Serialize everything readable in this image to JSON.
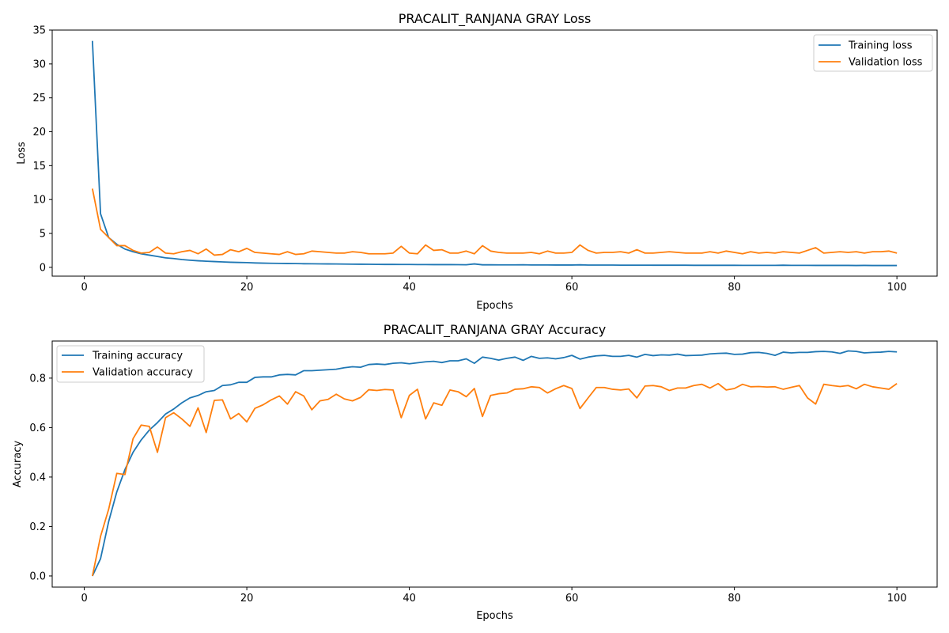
{
  "chart_data": [
    {
      "type": "line",
      "title": "PRACALIT_RANJANA GRAY Loss",
      "xlabel": "Epochs",
      "ylabel": "Loss",
      "xlim": [
        -3.95,
        104.95
      ],
      "ylim": [
        -1.3,
        35
      ],
      "xticks": [
        0,
        20,
        40,
        60,
        80,
        100
      ],
      "yticks": [
        0,
        5,
        10,
        15,
        20,
        25,
        30,
        35
      ],
      "grid": false,
      "legend_position": "top-right",
      "x": [
        1,
        2,
        3,
        4,
        5,
        6,
        7,
        8,
        9,
        10,
        11,
        12,
        13,
        14,
        15,
        16,
        17,
        18,
        19,
        20,
        21,
        22,
        23,
        24,
        25,
        26,
        27,
        28,
        29,
        30,
        31,
        32,
        33,
        34,
        35,
        36,
        37,
        38,
        39,
        40,
        41,
        42,
        43,
        44,
        45,
        46,
        47,
        48,
        49,
        50,
        51,
        52,
        53,
        54,
        55,
        56,
        57,
        58,
        59,
        60,
        61,
        62,
        63,
        64,
        65,
        66,
        67,
        68,
        69,
        70,
        71,
        72,
        73,
        74,
        75,
        76,
        77,
        78,
        79,
        80,
        81,
        82,
        83,
        84,
        85,
        86,
        87,
        88,
        89,
        90,
        91,
        92,
        93,
        94,
        95,
        96,
        97,
        98,
        99,
        100
      ],
      "series": [
        {
          "name": "Training loss",
          "color": "#1f77b4",
          "values": [
            33.4,
            7.9,
            4.4,
            3.4,
            2.7,
            2.3,
            2.0,
            1.8,
            1.6,
            1.4,
            1.3,
            1.15,
            1.05,
            0.97,
            0.9,
            0.85,
            0.8,
            0.75,
            0.72,
            0.7,
            0.65,
            0.62,
            0.6,
            0.58,
            0.56,
            0.55,
            0.53,
            0.52,
            0.51,
            0.5,
            0.49,
            0.48,
            0.47,
            0.46,
            0.45,
            0.44,
            0.43,
            0.43,
            0.42,
            0.42,
            0.41,
            0.41,
            0.4,
            0.4,
            0.4,
            0.39,
            0.38,
            0.5,
            0.37,
            0.37,
            0.36,
            0.36,
            0.36,
            0.38,
            0.35,
            0.35,
            0.35,
            0.34,
            0.34,
            0.34,
            0.37,
            0.33,
            0.33,
            0.33,
            0.33,
            0.32,
            0.32,
            0.32,
            0.32,
            0.31,
            0.31,
            0.31,
            0.31,
            0.31,
            0.3,
            0.3,
            0.3,
            0.3,
            0.3,
            0.3,
            0.29,
            0.29,
            0.29,
            0.29,
            0.29,
            0.31,
            0.29,
            0.29,
            0.29,
            0.28,
            0.28,
            0.28,
            0.28,
            0.28,
            0.27,
            0.28,
            0.27,
            0.27,
            0.27,
            0.27
          ]
        },
        {
          "name": "Validation loss",
          "color": "#ff7f0e",
          "values": [
            11.6,
            5.6,
            4.4,
            3.2,
            3.2,
            2.5,
            2.1,
            2.2,
            3.0,
            2.1,
            2.0,
            2.3,
            2.5,
            2.0,
            2.7,
            1.8,
            1.9,
            2.6,
            2.3,
            2.8,
            2.2,
            2.1,
            2.0,
            1.9,
            2.3,
            1.9,
            2.0,
            2.4,
            2.3,
            2.2,
            2.1,
            2.1,
            2.3,
            2.2,
            2.0,
            2.0,
            2.0,
            2.1,
            3.1,
            2.1,
            2.0,
            3.3,
            2.5,
            2.6,
            2.1,
            2.1,
            2.4,
            2.0,
            3.2,
            2.4,
            2.2,
            2.1,
            2.1,
            2.1,
            2.2,
            2.0,
            2.4,
            2.1,
            2.1,
            2.2,
            3.3,
            2.5,
            2.1,
            2.2,
            2.2,
            2.3,
            2.1,
            2.6,
            2.1,
            2.1,
            2.2,
            2.3,
            2.2,
            2.1,
            2.1,
            2.1,
            2.3,
            2.1,
            2.4,
            2.2,
            2.0,
            2.3,
            2.1,
            2.2,
            2.1,
            2.3,
            2.2,
            2.1,
            2.5,
            2.9,
            2.1,
            2.2,
            2.3,
            2.2,
            2.3,
            2.1,
            2.3,
            2.3,
            2.4,
            2.1
          ]
        }
      ]
    },
    {
      "type": "line",
      "title": "PRACALIT_RANJANA GRAY Accuracy",
      "xlabel": "Epochs",
      "ylabel": "Accuracy",
      "xlim": [
        -3.95,
        104.95
      ],
      "ylim": [
        -0.045,
        0.95
      ],
      "xticks": [
        0,
        20,
        40,
        60,
        80,
        100
      ],
      "yticks": [
        0.0,
        0.2,
        0.4,
        0.6,
        0.8
      ],
      "grid": false,
      "legend_position": "top-left",
      "x": [
        1,
        2,
        3,
        4,
        5,
        6,
        7,
        8,
        9,
        10,
        11,
        12,
        13,
        14,
        15,
        16,
        17,
        18,
        19,
        20,
        21,
        22,
        23,
        24,
        25,
        26,
        27,
        28,
        29,
        30,
        31,
        32,
        33,
        34,
        35,
        36,
        37,
        38,
        39,
        40,
        41,
        42,
        43,
        44,
        45,
        46,
        47,
        48,
        49,
        50,
        51,
        52,
        53,
        54,
        55,
        56,
        57,
        58,
        59,
        60,
        61,
        62,
        63,
        64,
        65,
        66,
        67,
        68,
        69,
        70,
        71,
        72,
        73,
        74,
        75,
        76,
        77,
        78,
        79,
        80,
        81,
        82,
        83,
        84,
        85,
        86,
        87,
        88,
        89,
        90,
        91,
        92,
        93,
        94,
        95,
        96,
        97,
        98,
        99,
        100
      ],
      "series": [
        {
          "name": "Training accuracy",
          "color": "#1f77b4",
          "values": [
            0.0,
            0.07,
            0.22,
            0.34,
            0.43,
            0.5,
            0.55,
            0.59,
            0.62,
            0.655,
            0.675,
            0.7,
            0.72,
            0.73,
            0.745,
            0.75,
            0.77,
            0.773,
            0.783,
            0.783,
            0.803,
            0.805,
            0.805,
            0.813,
            0.815,
            0.813,
            0.83,
            0.83,
            0.832,
            0.834,
            0.836,
            0.842,
            0.846,
            0.844,
            0.855,
            0.857,
            0.855,
            0.86,
            0.862,
            0.858,
            0.862,
            0.866,
            0.868,
            0.863,
            0.87,
            0.87,
            0.878,
            0.86,
            0.885,
            0.88,
            0.873,
            0.88,
            0.885,
            0.872,
            0.888,
            0.88,
            0.882,
            0.878,
            0.883,
            0.892,
            0.877,
            0.885,
            0.89,
            0.892,
            0.888,
            0.888,
            0.892,
            0.885,
            0.896,
            0.891,
            0.894,
            0.893,
            0.897,
            0.891,
            0.892,
            0.893,
            0.898,
            0.9,
            0.901,
            0.896,
            0.897,
            0.903,
            0.904,
            0.9,
            0.892,
            0.905,
            0.902,
            0.904,
            0.904,
            0.907,
            0.908,
            0.906,
            0.9,
            0.91,
            0.908,
            0.902,
            0.904,
            0.905,
            0.908,
            0.906
          ]
        },
        {
          "name": "Validation accuracy",
          "color": "#ff7f0e",
          "values": [
            0.0,
            0.16,
            0.27,
            0.415,
            0.41,
            0.555,
            0.61,
            0.605,
            0.5,
            0.64,
            0.66,
            0.635,
            0.605,
            0.68,
            0.58,
            0.71,
            0.712,
            0.635,
            0.657,
            0.623,
            0.678,
            0.692,
            0.712,
            0.728,
            0.695,
            0.745,
            0.728,
            0.672,
            0.708,
            0.714,
            0.735,
            0.716,
            0.708,
            0.722,
            0.753,
            0.75,
            0.754,
            0.752,
            0.64,
            0.73,
            0.755,
            0.635,
            0.7,
            0.69,
            0.752,
            0.745,
            0.725,
            0.758,
            0.645,
            0.73,
            0.737,
            0.74,
            0.755,
            0.757,
            0.765,
            0.762,
            0.74,
            0.757,
            0.77,
            0.758,
            0.677,
            0.72,
            0.762,
            0.762,
            0.755,
            0.752,
            0.756,
            0.72,
            0.768,
            0.77,
            0.765,
            0.75,
            0.76,
            0.76,
            0.77,
            0.775,
            0.76,
            0.778,
            0.752,
            0.758,
            0.775,
            0.765,
            0.766,
            0.764,
            0.765,
            0.755,
            0.763,
            0.77,
            0.72,
            0.695,
            0.775,
            0.77,
            0.766,
            0.77,
            0.757,
            0.775,
            0.765,
            0.76,
            0.755,
            0.778
          ]
        }
      ]
    }
  ]
}
